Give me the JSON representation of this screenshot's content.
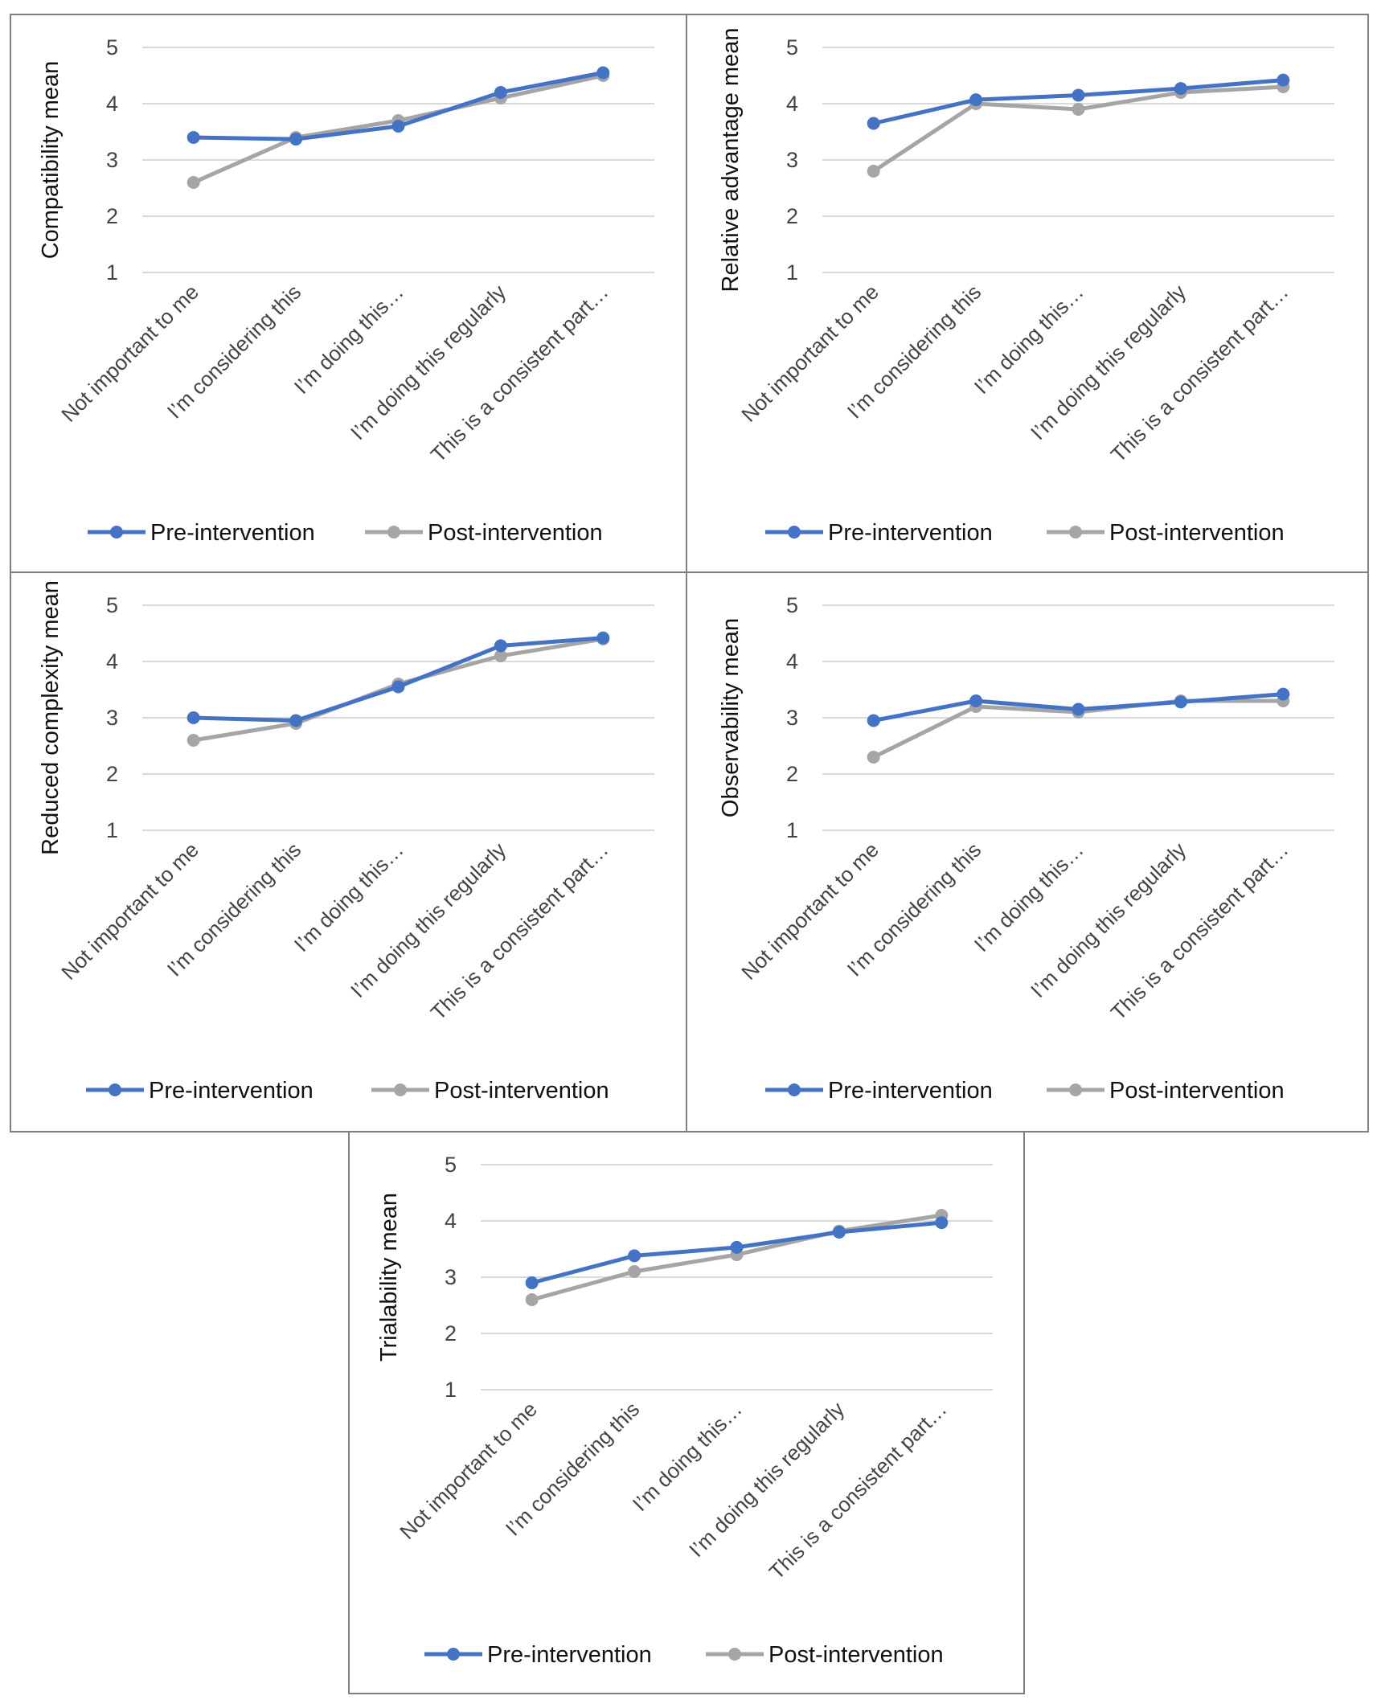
{
  "colors": {
    "pre": "#4472c4",
    "post": "#a5a5a5",
    "grid": "#d9d9d9",
    "border": "#7f7f7f"
  },
  "chart_data": [
    {
      "type": "line",
      "ylabel": "Compatibility mean",
      "ylim": [
        1,
        5
      ],
      "yticks": [
        "1",
        "2",
        "3",
        "4",
        "5"
      ],
      "categories": [
        "Not important to me",
        "I’m considering this",
        "I’m doing this…",
        "I’m doing this regularly",
        "This is a consistent part…"
      ],
      "series": [
        {
          "name": "Pre-intervention",
          "values": [
            3.4,
            3.37,
            3.6,
            4.2,
            4.55
          ]
        },
        {
          "name": "Post-intervention",
          "values": [
            2.6,
            3.4,
            3.7,
            4.1,
            4.5
          ]
        }
      ],
      "legend": "bottom"
    },
    {
      "type": "line",
      "ylabel": "Relative advantage mean",
      "ylim": [
        1,
        5
      ],
      "yticks": [
        "1",
        "2",
        "3",
        "4",
        "5"
      ],
      "categories": [
        "Not important to me",
        "I’m considering this",
        "I’m doing this…",
        "I’m doing this regularly",
        "This is a consistent part…"
      ],
      "series": [
        {
          "name": "Pre-intervention",
          "values": [
            3.65,
            4.07,
            4.15,
            4.27,
            4.42
          ]
        },
        {
          "name": "Post-intervention",
          "values": [
            2.8,
            4.0,
            3.9,
            4.2,
            4.3
          ]
        }
      ],
      "legend": "bottom"
    },
    {
      "type": "line",
      "ylabel": "Reduced complexity mean",
      "ylim": [
        1,
        5
      ],
      "yticks": [
        "1",
        "2",
        "3",
        "4",
        "5"
      ],
      "categories": [
        "Not important to me",
        "I’m considering this",
        "I’m doing this…",
        "I’m doing this regularly",
        "This is a consistent part…"
      ],
      "series": [
        {
          "name": "Pre-intervention",
          "values": [
            3.0,
            2.95,
            3.55,
            4.28,
            4.42
          ]
        },
        {
          "name": "Post-intervention",
          "values": [
            2.6,
            2.9,
            3.6,
            4.1,
            4.4
          ]
        }
      ],
      "legend": "bottom"
    },
    {
      "type": "line",
      "ylabel": "Observability mean",
      "ylim": [
        1,
        5
      ],
      "yticks": [
        "1",
        "2",
        "3",
        "4",
        "5"
      ],
      "categories": [
        "Not important to me",
        "I’m considering this",
        "I’m doing this…",
        "I’m doing this regularly",
        "This is a consistent part…"
      ],
      "series": [
        {
          "name": "Pre-intervention",
          "values": [
            2.95,
            3.3,
            3.15,
            3.28,
            3.42
          ]
        },
        {
          "name": "Post-intervention",
          "values": [
            2.3,
            3.2,
            3.1,
            3.3,
            3.3
          ]
        }
      ],
      "legend": "bottom"
    },
    {
      "type": "line",
      "ylabel": "Trialability mean",
      "ylim": [
        1,
        5
      ],
      "yticks": [
        "1",
        "2",
        "3",
        "4",
        "5"
      ],
      "categories": [
        "Not important to me",
        "I’m considering this",
        "I’m doing this…",
        "I’m doing this regularly",
        "This is a consistent part…"
      ],
      "series": [
        {
          "name": "Pre-intervention",
          "values": [
            2.9,
            3.38,
            3.53,
            3.8,
            3.97
          ]
        },
        {
          "name": "Post-intervention",
          "values": [
            2.6,
            3.1,
            3.4,
            3.82,
            4.1
          ]
        }
      ],
      "legend": "bottom"
    }
  ]
}
